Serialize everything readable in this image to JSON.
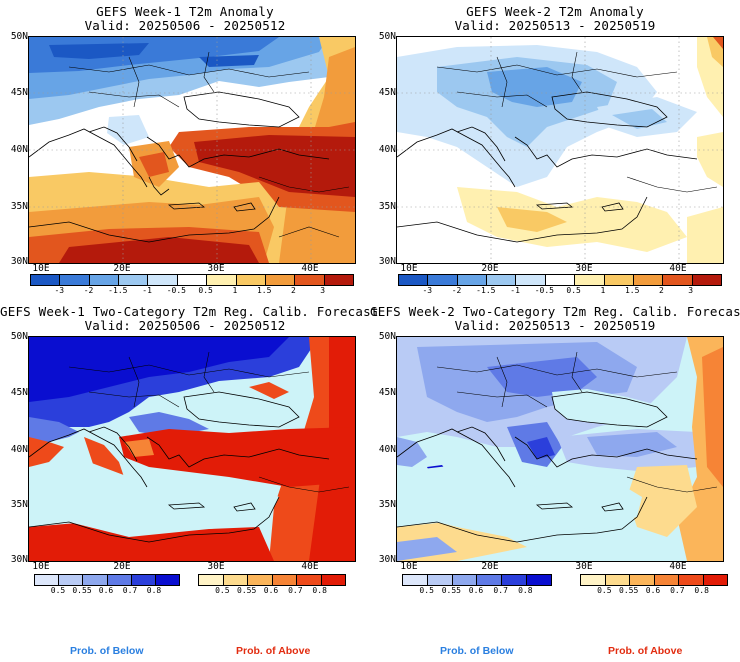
{
  "panels": [
    {
      "title": "GEFS Week-1 T2m Anomaly",
      "valid": "Valid: 20250506 - 20250512"
    },
    {
      "title": "GEFS Week-2 T2m Anomaly",
      "valid": "Valid: 20250513 - 20250519"
    },
    {
      "title": "GEFS Week-1 Two-Category T2m Reg. Calib. Forecast",
      "valid": "Valid: 20250506 - 20250512"
    },
    {
      "title": "GEFS Week-2 Two-Category T2m Reg. Calib. Forecast",
      "valid": "Valid: 20250513 - 20250519"
    }
  ],
  "lat_labels": [
    "50N",
    "45N",
    "40N",
    "35N",
    "30N"
  ],
  "lon_labels": [
    "10E",
    "20E",
    "30E",
    "40E"
  ],
  "anomaly_scale": {
    "labels": [
      "-3",
      "-2",
      "-1.5",
      "-1",
      "-0.5",
      "0.5",
      "1",
      "1.5",
      "2",
      "3"
    ],
    "colors": [
      "#1b58c4",
      "#3a7ad8",
      "#67a4e6",
      "#9cc8f0",
      "#cfe6fa",
      "#ffffff",
      "#fff0b0",
      "#f9c964",
      "#f29c3c",
      "#e2561e",
      "#b41a0c"
    ]
  },
  "prob_below_scale": {
    "labels": [
      "0.5",
      "0.55",
      "0.6",
      "0.7",
      "0.8"
    ],
    "colors": [
      "#dde7fb",
      "#b9cbf5",
      "#8ea8ee",
      "#5f7ae6",
      "#2b3fdb",
      "#0a0ed0"
    ]
  },
  "prob_above_scale": {
    "labels": [
      "0.5",
      "0.55",
      "0.6",
      "0.7",
      "0.8"
    ],
    "colors": [
      "#fff3c6",
      "#fddb8e",
      "#fbb55a",
      "#f68436",
      "#ee4a1a",
      "#e21c07"
    ]
  },
  "legend_labels": {
    "below": "Prob. of Below",
    "above": "Prob. of Above"
  },
  "colors": {
    "ocean_prob": "#cdf3f8",
    "below_text": "#2a7fe0",
    "above_text": "#e22c10"
  }
}
